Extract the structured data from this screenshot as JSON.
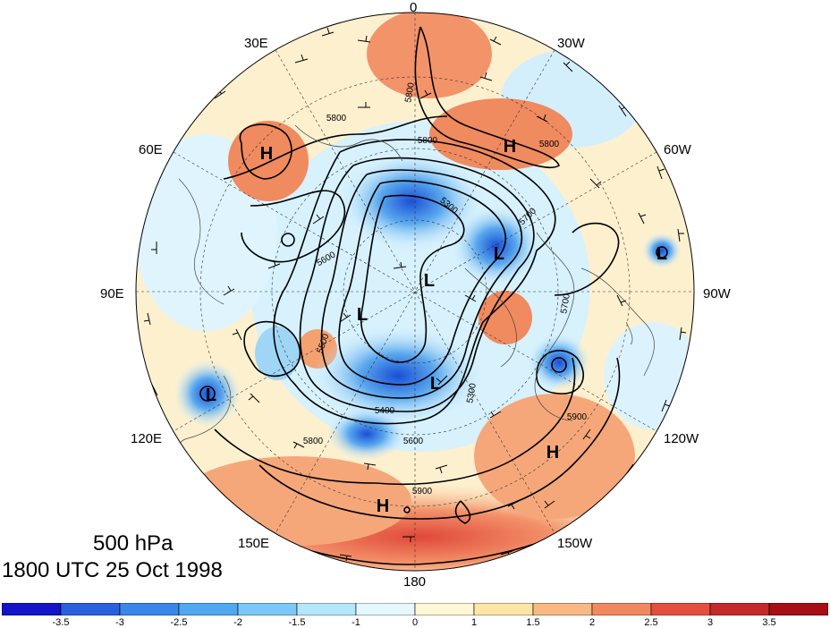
{
  "map": {
    "longitude_labels": [
      "0",
      "30W",
      "60W",
      "90W",
      "120W",
      "150W",
      "180",
      "150E",
      "120E",
      "90E",
      "60E",
      "30E"
    ],
    "pressure_centers": [
      {
        "label": "H"
      },
      {
        "label": "H"
      },
      {
        "label": "L"
      },
      {
        "label": "L"
      },
      {
        "label": "L"
      },
      {
        "label": "L"
      },
      {
        "label": "L"
      },
      {
        "label": "L"
      },
      {
        "label": "H"
      },
      {
        "label": "H"
      }
    ],
    "contour_labels": [
      "5800",
      "5800",
      "5800",
      "5800",
      "5600",
      "5700",
      "5500",
      "5400",
      "5300",
      "5600",
      "5900",
      "5900",
      "5800",
      "5300",
      "5700"
    ],
    "colors": {
      "cold_max": "#0000c8",
      "warm_max": "#a50f15",
      "neutral_low": "#e6f8ff",
      "neutral_high": "#fff7d5"
    }
  },
  "title": {
    "level": "500 hPa",
    "datetime": "1800 UTC 25 Oct 1998"
  },
  "colorbar": {
    "labels": [
      "-3.5",
      "-3",
      "-2.5",
      "-2",
      "-1.5",
      "-1",
      "0",
      "1",
      "1.5",
      "2",
      "2.5",
      "3",
      "3.5"
    ],
    "colors": [
      "#1414c8",
      "#2a5fe0",
      "#3a86ea",
      "#4fa8f0",
      "#7cc8f8",
      "#b4e6fc",
      "#e6f8ff",
      "#fff7d5",
      "#fde4a7",
      "#f9b883",
      "#f2885f",
      "#e54f3f",
      "#c42a2a",
      "#a50f15"
    ]
  }
}
